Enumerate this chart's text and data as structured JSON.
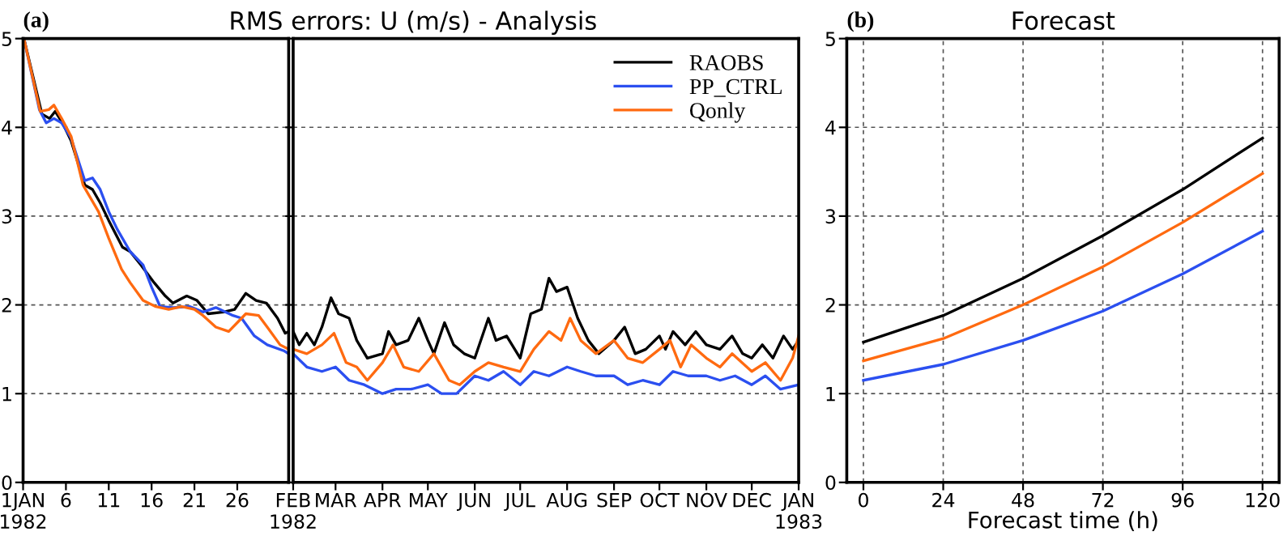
{
  "chart_data": [
    {
      "type": "line",
      "annotations": [
        "(a)"
      ],
      "xlim": [
        1,
        32
      ],
      "xticks": [
        {
          "value": 1,
          "label": "1JAN\n1982"
        },
        6,
        11,
        16,
        21,
        26
      ],
      "ylim": [
        0,
        5
      ],
      "yticks": [
        0,
        1,
        2,
        3,
        4,
        5
      ],
      "grid": "y",
      "tick_labels": "xy",
      "series": [
        {
          "color": "#000000",
          "x": [
            1.1,
            3.2,
            4.1,
            4.75,
            5.6,
            6.6,
            8.2,
            9.1,
            10,
            11,
            12.6,
            13.5,
            14.75,
            16.3,
            17.6,
            18.5,
            20.1,
            21.3,
            22.6,
            24.4,
            25.7,
            27,
            28.2,
            29.4,
            30.7,
            31.6,
            32
          ],
          "values": [
            5,
            4.15,
            4.1,
            4.18,
            4.05,
            3.85,
            3.35,
            3.3,
            3.15,
            2.95,
            2.65,
            2.6,
            2.45,
            2.25,
            2.1,
            2.02,
            2.1,
            2.05,
            1.9,
            1.92,
            1.95,
            2.13,
            2.05,
            2.02,
            1.85,
            1.68,
            1.7
          ]
        },
        {
          "color": "#2b4ff0",
          "x": [
            1.1,
            2.9,
            3.7,
            4.6,
            5.5,
            6.6,
            8.2,
            9.1,
            10,
            11,
            12,
            13.5,
            15,
            16,
            17,
            18.5,
            20.5,
            22,
            23.5,
            25.5,
            26.5,
            28,
            29.5,
            31.5,
            32
          ],
          "values": [
            5,
            4.2,
            4.05,
            4.1,
            4.05,
            3.88,
            3.4,
            3.43,
            3.3,
            3.05,
            2.85,
            2.6,
            2.45,
            2.2,
            1.98,
            1.97,
            1.98,
            1.92,
            1.97,
            1.88,
            1.85,
            1.65,
            1.55,
            1.48,
            1.45
          ]
        },
        {
          "color": "#ff6a10",
          "x": [
            1.1,
            3,
            4,
            4.6,
            5.5,
            6.6,
            8,
            9.8,
            11,
            12.5,
            13.5,
            15,
            16.5,
            18,
            19.5,
            21,
            22,
            23.5,
            25,
            26,
            27,
            28.5,
            29.5,
            31,
            32
          ],
          "values": [
            5,
            4.18,
            4.2,
            4.25,
            4.1,
            3.9,
            3.35,
            3.05,
            2.75,
            2.4,
            2.25,
            2.05,
            1.98,
            1.95,
            1.98,
            1.95,
            1.88,
            1.75,
            1.7,
            1.8,
            1.9,
            1.88,
            1.75,
            1.55,
            1.5
          ]
        }
      ]
    },
    {
      "type": "line",
      "title": "RMS errors: U (m/s) - Analysis",
      "xlim": [
        "1982-02-01",
        "1983-01-01"
      ],
      "xticks": [
        {
          "value": "1982-02-01",
          "label": "FEB\n1982"
        },
        {
          "value": "1982-03-01",
          "label": "MAR"
        },
        {
          "value": "1982-04-01",
          "label": "APR"
        },
        {
          "value": "1982-05-01",
          "label": "MAY"
        },
        {
          "value": "1982-06-01",
          "label": "JUN"
        },
        {
          "value": "1982-07-01",
          "label": "JUL"
        },
        {
          "value": "1982-08-01",
          "label": "AUG"
        },
        {
          "value": "1982-09-01",
          "label": "SEP"
        },
        {
          "value": "1982-10-01",
          "label": "OCT"
        },
        {
          "value": "1982-11-01",
          "label": "NOV"
        },
        {
          "value": "1982-12-01",
          "label": "DEC"
        },
        {
          "value": "1983-01-01",
          "label": "JAN\n1983"
        }
      ],
      "ylim": [
        0,
        5
      ],
      "yticks": [
        0,
        1,
        2,
        3,
        4,
        5
      ],
      "grid": "y",
      "tick_labels": "x",
      "legend": "top right",
      "series": [
        {
          "name": "RAOBS",
          "color": "#000000",
          "x": [
            "1982-02-01",
            "1982-02-05",
            "1982-02-10",
            "1982-02-15",
            "1982-02-20",
            "1982-02-26",
            "1982-03-03",
            "1982-03-10",
            "1982-03-15",
            "1982-03-22",
            "1982-04-01",
            "1982-04-05",
            "1982-04-10",
            "1982-04-18",
            "1982-04-25",
            "1982-05-01",
            "1982-05-05",
            "1982-05-12",
            "1982-05-18",
            "1982-05-25",
            "1982-06-01",
            "1982-06-10",
            "1982-06-15",
            "1982-06-22",
            "1982-07-01",
            "1982-07-08",
            "1982-07-15",
            "1982-07-20",
            "1982-07-25",
            "1982-08-01",
            "1982-08-08",
            "1982-08-15",
            "1982-08-22",
            "1982-09-01",
            "1982-09-08",
            "1982-09-15",
            "1982-09-22",
            "1982-10-01",
            "1982-10-05",
            "1982-10-10",
            "1982-10-18",
            "1982-10-25",
            "1982-11-01",
            "1982-11-10",
            "1982-11-18",
            "1982-11-25",
            "1982-12-01",
            "1982-12-08",
            "1982-12-15",
            "1982-12-22",
            "1982-12-28",
            "1983-01-01"
          ],
          "values": [
            1.7,
            1.55,
            1.68,
            1.55,
            1.75,
            2.08,
            1.9,
            1.85,
            1.6,
            1.4,
            1.45,
            1.7,
            1.55,
            1.6,
            1.85,
            1.6,
            1.45,
            1.8,
            1.55,
            1.45,
            1.4,
            1.85,
            1.6,
            1.65,
            1.4,
            1.9,
            1.95,
            2.3,
            2.15,
            2.2,
            1.85,
            1.6,
            1.45,
            1.6,
            1.75,
            1.45,
            1.5,
            1.65,
            1.5,
            1.7,
            1.55,
            1.7,
            1.55,
            1.5,
            1.65,
            1.45,
            1.4,
            1.55,
            1.4,
            1.65,
            1.5,
            1.6
          ]
        },
        {
          "name": "PP_CTRL",
          "color": "#2b4ff0",
          "x": [
            "1982-02-01",
            "1982-02-10",
            "1982-02-20",
            "1982-03-01",
            "1982-03-10",
            "1982-03-20",
            "1982-04-01",
            "1982-04-10",
            "1982-04-20",
            "1982-05-01",
            "1982-05-10",
            "1982-05-20",
            "1982-06-01",
            "1982-06-10",
            "1982-06-20",
            "1982-07-01",
            "1982-07-10",
            "1982-07-20",
            "1982-08-01",
            "1982-08-10",
            "1982-08-20",
            "1982-09-01",
            "1982-09-10",
            "1982-09-20",
            "1982-10-01",
            "1982-10-10",
            "1982-10-20",
            "1982-11-01",
            "1982-11-10",
            "1982-11-20",
            "1982-12-01",
            "1982-12-10",
            "1982-12-20",
            "1983-01-01"
          ],
          "values": [
            1.45,
            1.3,
            1.25,
            1.3,
            1.15,
            1.1,
            1.0,
            1.05,
            1.05,
            1.1,
            1.0,
            1.0,
            1.2,
            1.15,
            1.25,
            1.1,
            1.25,
            1.2,
            1.3,
            1.25,
            1.2,
            1.2,
            1.1,
            1.15,
            1.1,
            1.25,
            1.2,
            1.2,
            1.15,
            1.2,
            1.1,
            1.2,
            1.05,
            1.1
          ]
        },
        {
          "name": "Qonly",
          "color": "#ff6a10",
          "x": [
            "1982-02-01",
            "1982-02-10",
            "1982-02-20",
            "1982-02-28",
            "1982-03-08",
            "1982-03-15",
            "1982-03-22",
            "1982-04-01",
            "1982-04-08",
            "1982-04-15",
            "1982-04-25",
            "1982-05-05",
            "1982-05-15",
            "1982-05-22",
            "1982-06-01",
            "1982-06-10",
            "1982-06-20",
            "1982-07-01",
            "1982-07-10",
            "1982-07-20",
            "1982-07-28",
            "1982-08-03",
            "1982-08-10",
            "1982-08-20",
            "1982-09-01",
            "1982-09-10",
            "1982-09-20",
            "1982-10-01",
            "1982-10-08",
            "1982-10-15",
            "1982-10-22",
            "1982-11-01",
            "1982-11-10",
            "1982-11-18",
            "1982-12-01",
            "1982-12-10",
            "1982-12-20",
            "1982-12-28",
            "1983-01-01"
          ],
          "values": [
            1.5,
            1.45,
            1.55,
            1.68,
            1.35,
            1.3,
            1.15,
            1.35,
            1.55,
            1.3,
            1.25,
            1.45,
            1.15,
            1.1,
            1.25,
            1.35,
            1.3,
            1.25,
            1.5,
            1.7,
            1.6,
            1.85,
            1.6,
            1.45,
            1.6,
            1.4,
            1.35,
            1.5,
            1.6,
            1.3,
            1.55,
            1.4,
            1.3,
            1.45,
            1.25,
            1.35,
            1.15,
            1.4,
            1.65
          ]
        }
      ]
    },
    {
      "type": "line",
      "title": "Forecast",
      "annotations": [
        "(b)"
      ],
      "xlabel": "Forecast time (h)",
      "xlim": [
        -5,
        125
      ],
      "xticks": [
        0,
        24,
        48,
        72,
        96,
        120
      ],
      "ylim": [
        0,
        5
      ],
      "yticks": [
        0,
        1,
        2,
        3,
        4,
        5
      ],
      "grid": true,
      "x": [
        0,
        24,
        48,
        72,
        96,
        120
      ],
      "series": [
        {
          "color": "#000000",
          "values": [
            1.58,
            1.88,
            2.3,
            2.78,
            3.3,
            3.88
          ]
        },
        {
          "color": "#ff6a10",
          "values": [
            1.37,
            1.62,
            2.0,
            2.43,
            2.93,
            3.48
          ]
        },
        {
          "color": "#2b4ff0",
          "values": [
            1.15,
            1.33,
            1.6,
            1.93,
            2.35,
            2.83
          ]
        }
      ]
    }
  ]
}
